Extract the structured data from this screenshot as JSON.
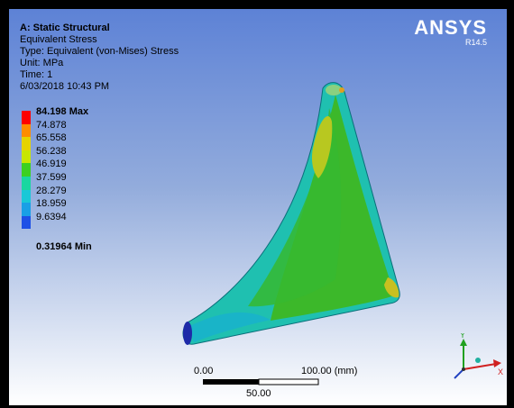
{
  "header": {
    "analysis": "A: Static Structural",
    "result": "Equivalent Stress",
    "type": "Type: Equivalent (von-Mises) Stress",
    "unit": "Unit: MPa",
    "time": "Time: 1",
    "datetime": "6/03/2018 10:43 PM"
  },
  "brand": {
    "name": "ANSYS",
    "version": "R14.5"
  },
  "legend": {
    "entries": [
      {
        "label": "84.198 Max",
        "color": "#ff0000"
      },
      {
        "label": "74.878",
        "color": "#ff8c00"
      },
      {
        "label": "65.558",
        "color": "#e6d300"
      },
      {
        "label": "56.238",
        "color": "#c8e600"
      },
      {
        "label": "46.919",
        "color": "#3cd020"
      },
      {
        "label": "37.599",
        "color": "#19d7a0"
      },
      {
        "label": "28.279",
        "color": "#19c8d7"
      },
      {
        "label": "18.959",
        "color": "#19a0e6"
      },
      {
        "label": "9.6394",
        "color": "#1e50e6"
      },
      {
        "label": "0.31964 Min",
        "color": "#0000c8"
      }
    ]
  },
  "scale_bar": {
    "left": "0.00",
    "right": "100.00 (mm)",
    "mid": "50.00"
  },
  "triad": {
    "x": "X",
    "y": "Y"
  }
}
